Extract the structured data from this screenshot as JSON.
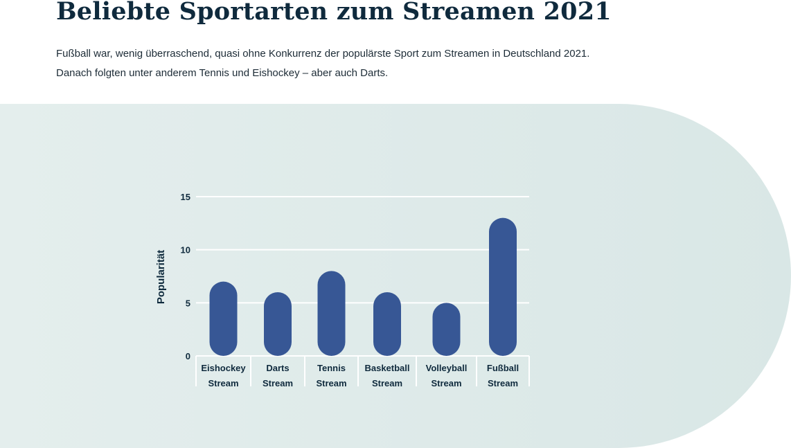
{
  "header": {
    "title": "Beliebte Sportarten zum Streamen 2021",
    "subtitle_line1": "Fußball war, wenig überraschend, quasi ohne Konkurrenz der populärste Sport zum Streamen in Deutschland 2021.",
    "subtitle_line2": "Danach folgten unter anderem Tennis und Eishockey – aber auch Darts."
  },
  "chart_data": {
    "type": "bar",
    "title": "",
    "xlabel": "",
    "ylabel": "Popularität",
    "categories": [
      [
        "Eishockey",
        "Stream"
      ],
      [
        "Darts",
        "Stream"
      ],
      [
        "Tennis",
        "Stream"
      ],
      [
        "Basketball",
        "Stream"
      ],
      [
        "Volleyball",
        "Stream"
      ],
      [
        "Fußball",
        "Stream"
      ]
    ],
    "values": [
      7,
      6,
      8,
      6,
      5,
      13
    ],
    "ylim": [
      0,
      15
    ],
    "yticks": [
      0,
      5,
      10,
      15
    ],
    "grid": true,
    "colors": {
      "bar": "#375795",
      "grid": "#ffffff",
      "text": "#0f2a3d",
      "background": "#dde9e8"
    }
  }
}
